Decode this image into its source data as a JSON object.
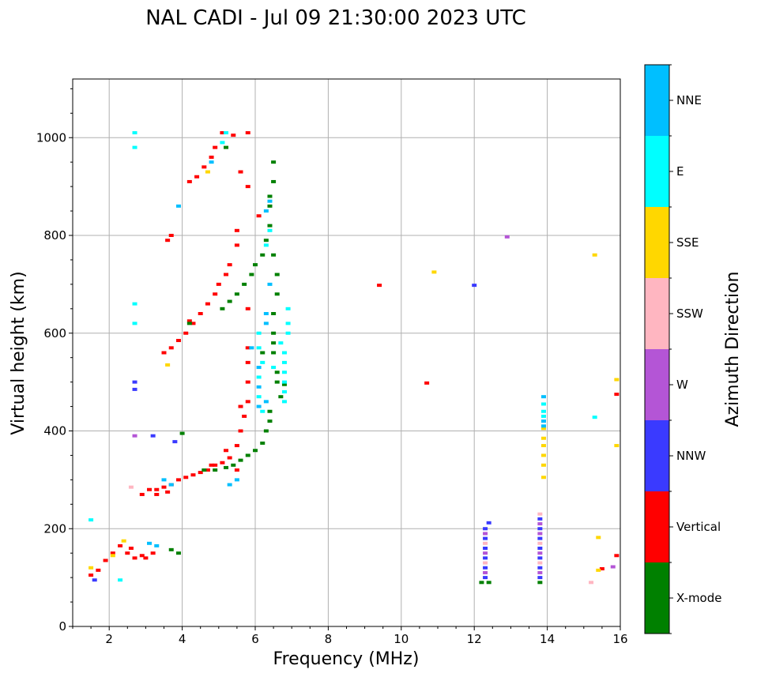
{
  "chart_data": {
    "type": "scatter",
    "title": "NAL CADI - Jul 09 21:30:00 2023 UTC",
    "xlabel": "Frequency (MHz)",
    "ylabel": "Virtual height (km)",
    "xlim": [
      1,
      16
    ],
    "ylim": [
      0,
      1120
    ],
    "xticks": [
      2,
      4,
      6,
      8,
      10,
      12,
      14,
      16
    ],
    "yticks": [
      0,
      200,
      400,
      600,
      800,
      1000
    ],
    "grid": true,
    "colorbar": {
      "label": "Azimuth Direction",
      "categories": [
        {
          "name": "X-mode",
          "color": "#008000"
        },
        {
          "name": "Vertical",
          "color": "#ff0000"
        },
        {
          "name": "NNW",
          "color": "#3a3aff"
        },
        {
          "name": "W",
          "color": "#b455d6"
        },
        {
          "name": "SSW",
          "color": "#ffb6c1"
        },
        {
          "name": "SSE",
          "color": "#ffd700"
        },
        {
          "name": "E",
          "color": "#00ffff"
        },
        {
          "name": "NNE",
          "color": "#00bfff"
        }
      ]
    },
    "series": [
      {
        "name": "Vertical",
        "points": [
          [
            1.5,
            105
          ],
          [
            1.7,
            115
          ],
          [
            1.9,
            135
          ],
          [
            2.1,
            150
          ],
          [
            2.3,
            165
          ],
          [
            2.5,
            150
          ],
          [
            2.7,
            140
          ],
          [
            2.9,
            145
          ],
          [
            3.0,
            140
          ],
          [
            3.2,
            150
          ],
          [
            2.9,
            270
          ],
          [
            3.1,
            280
          ],
          [
            3.3,
            270
          ],
          [
            3.5,
            285
          ],
          [
            3.7,
            290
          ],
          [
            3.9,
            300
          ],
          [
            4.1,
            305
          ],
          [
            4.3,
            310
          ],
          [
            4.5,
            315
          ],
          [
            4.7,
            320
          ],
          [
            4.9,
            330
          ],
          [
            5.1,
            335
          ],
          [
            5.3,
            345
          ],
          [
            5.5,
            370
          ],
          [
            5.6,
            400
          ],
          [
            5.7,
            430
          ],
          [
            5.8,
            460
          ],
          [
            5.8,
            500
          ],
          [
            5.8,
            540
          ],
          [
            5.8,
            570
          ],
          [
            3.5,
            560
          ],
          [
            3.7,
            570
          ],
          [
            3.9,
            585
          ],
          [
            4.1,
            600
          ],
          [
            4.3,
            620
          ],
          [
            4.5,
            640
          ],
          [
            4.7,
            660
          ],
          [
            4.9,
            680
          ],
          [
            5.0,
            700
          ],
          [
            5.2,
            720
          ],
          [
            5.3,
            740
          ],
          [
            5.5,
            780
          ],
          [
            5.5,
            810
          ],
          [
            3.6,
            790
          ],
          [
            3.7,
            800
          ],
          [
            4.2,
            910
          ],
          [
            4.4,
            920
          ],
          [
            4.6,
            940
          ],
          [
            4.8,
            960
          ],
          [
            4.9,
            980
          ],
          [
            5.1,
            1010
          ],
          [
            5.4,
            1005
          ],
          [
            5.8,
            1010
          ],
          [
            5.6,
            930
          ],
          [
            5.8,
            900
          ],
          [
            9.4,
            698
          ],
          [
            10.7,
            498
          ],
          [
            15.5,
            118
          ],
          [
            15.9,
            145
          ],
          [
            15.9,
            475
          ],
          [
            3.3,
            280
          ],
          [
            4.8,
            330
          ],
          [
            5.2,
            360
          ],
          [
            5.6,
            450
          ],
          [
            5.8,
            650
          ],
          [
            4.2,
            625
          ],
          [
            5.5,
            320
          ],
          [
            6.1,
            840
          ],
          [
            3.6,
            275
          ],
          [
            2.6,
            160
          ]
        ]
      },
      {
        "name": "X-mode",
        "points": [
          [
            3.7,
            157
          ],
          [
            3.9,
            150
          ],
          [
            4.2,
            620
          ],
          [
            4.0,
            395
          ],
          [
            4.6,
            320
          ],
          [
            4.9,
            320
          ],
          [
            5.2,
            325
          ],
          [
            5.4,
            330
          ],
          [
            5.6,
            340
          ],
          [
            5.8,
            350
          ],
          [
            6.0,
            360
          ],
          [
            6.2,
            375
          ],
          [
            6.3,
            400
          ],
          [
            6.4,
            420
          ],
          [
            6.4,
            440
          ],
          [
            5.1,
            650
          ],
          [
            5.3,
            665
          ],
          [
            5.5,
            680
          ],
          [
            5.7,
            700
          ],
          [
            5.9,
            720
          ],
          [
            6.0,
            740
          ],
          [
            6.2,
            760
          ],
          [
            6.3,
            790
          ],
          [
            6.4,
            820
          ],
          [
            6.4,
            860
          ],
          [
            6.4,
            880
          ],
          [
            6.5,
            910
          ],
          [
            6.5,
            950
          ],
          [
            6.6,
            500
          ],
          [
            6.6,
            520
          ],
          [
            6.5,
            560
          ],
          [
            6.5,
            600
          ],
          [
            6.5,
            640
          ],
          [
            6.6,
            680
          ],
          [
            6.6,
            720
          ],
          [
            6.5,
            760
          ],
          [
            5.2,
            980
          ],
          [
            6.8,
            495
          ],
          [
            6.7,
            470
          ],
          [
            12.2,
            90
          ],
          [
            12.4,
            90
          ],
          [
            13.8,
            90
          ],
          [
            6.2,
            560
          ],
          [
            6.5,
            580
          ]
        ]
      },
      {
        "name": "NNW",
        "points": [
          [
            12.3,
            100
          ],
          [
            12.3,
            120
          ],
          [
            12.3,
            140
          ],
          [
            12.3,
            160
          ],
          [
            12.3,
            180
          ],
          [
            12.3,
            200
          ],
          [
            12.4,
            212
          ],
          [
            13.8,
            100
          ],
          [
            13.8,
            120
          ],
          [
            13.8,
            140
          ],
          [
            13.8,
            160
          ],
          [
            13.8,
            180
          ],
          [
            13.8,
            200
          ],
          [
            13.8,
            220
          ],
          [
            12.0,
            698
          ],
          [
            3.2,
            390
          ],
          [
            3.8,
            378
          ],
          [
            2.7,
            500
          ],
          [
            2.7,
            485
          ],
          [
            1.6,
            95
          ]
        ]
      },
      {
        "name": "W",
        "points": [
          [
            12.9,
            797
          ],
          [
            15.8,
            122
          ],
          [
            12.3,
            110
          ],
          [
            12.3,
            150
          ],
          [
            12.3,
            190
          ],
          [
            13.8,
            110
          ],
          [
            13.8,
            150
          ],
          [
            13.8,
            190
          ],
          [
            13.8,
            210
          ],
          [
            2.7,
            390
          ]
        ]
      },
      {
        "name": "SSW",
        "points": [
          [
            15.2,
            90
          ],
          [
            12.3,
            130
          ],
          [
            12.3,
            170
          ],
          [
            13.8,
            130
          ],
          [
            13.8,
            170
          ],
          [
            13.8,
            230
          ],
          [
            2.6,
            285
          ]
        ]
      },
      {
        "name": "SSE",
        "points": [
          [
            15.3,
            760
          ],
          [
            15.4,
            182
          ],
          [
            15.9,
            505
          ],
          [
            15.9,
            370
          ],
          [
            15.4,
            115
          ],
          [
            10.9,
            725
          ],
          [
            13.9,
            305
          ],
          [
            13.9,
            330
          ],
          [
            13.9,
            350
          ],
          [
            13.9,
            370
          ],
          [
            13.9,
            385
          ],
          [
            13.9,
            405
          ],
          [
            3.6,
            535
          ],
          [
            4.7,
            930
          ],
          [
            1.5,
            120
          ],
          [
            2.1,
            145
          ],
          [
            2.4,
            175
          ]
        ]
      },
      {
        "name": "E",
        "points": [
          [
            6.1,
            600
          ],
          [
            6.1,
            570
          ],
          [
            6.2,
            540
          ],
          [
            6.1,
            510
          ],
          [
            6.1,
            470
          ],
          [
            6.2,
            440
          ],
          [
            6.7,
            580
          ],
          [
            6.8,
            560
          ],
          [
            6.8,
            540
          ],
          [
            6.8,
            520
          ],
          [
            6.8,
            500
          ],
          [
            6.8,
            480
          ],
          [
            6.8,
            460
          ],
          [
            6.9,
            620
          ],
          [
            6.9,
            650
          ],
          [
            6.9,
            600
          ],
          [
            5.1,
            990
          ],
          [
            5.2,
            1010
          ],
          [
            2.7,
            1010
          ],
          [
            2.7,
            980
          ],
          [
            15.3,
            428
          ],
          [
            13.9,
            430
          ],
          [
            13.9,
            440
          ],
          [
            13.9,
            455
          ],
          [
            6.3,
            780
          ],
          [
            6.4,
            810
          ],
          [
            2.3,
            95
          ],
          [
            1.5,
            218
          ],
          [
            2.7,
            660
          ],
          [
            2.7,
            620
          ],
          [
            6.5,
            530
          ]
        ]
      },
      {
        "name": "NNE",
        "points": [
          [
            13.9,
            470
          ],
          [
            13.9,
            420
          ],
          [
            13.9,
            410
          ],
          [
            6.3,
            640
          ],
          [
            6.4,
            700
          ],
          [
            6.3,
            850
          ],
          [
            6.4,
            870
          ],
          [
            5.3,
            290
          ],
          [
            5.5,
            300
          ],
          [
            3.5,
            300
          ],
          [
            3.7,
            290
          ],
          [
            3.1,
            170
          ],
          [
            3.3,
            165
          ],
          [
            3.9,
            860
          ],
          [
            4.8,
            950
          ],
          [
            5.9,
            570
          ],
          [
            6.1,
            530
          ],
          [
            6.1,
            490
          ],
          [
            6.1,
            450
          ],
          [
            6.3,
            620
          ],
          [
            6.3,
            460
          ]
        ]
      }
    ]
  }
}
